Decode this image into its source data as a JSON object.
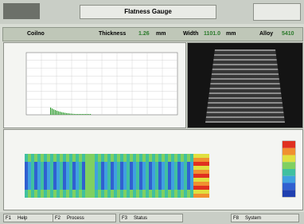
{
  "header": {
    "title": "Flatness Gauge"
  },
  "info": {
    "coil_label": "Coilno",
    "thickness_label": "Thickness",
    "thickness": "1.26",
    "thickness_unit": "mm",
    "width_label": "Width",
    "width": "1101.0",
    "width_unit": "mm",
    "alloy_label": "Alloy",
    "alloy": "5410"
  },
  "footer": {
    "keys": [
      {
        "key": "F1",
        "label": "Help"
      },
      {
        "key": "F2",
        "label": "Process"
      },
      {
        "key": "F3",
        "label": "Status"
      },
      {
        "key": "F8",
        "label": "System"
      }
    ]
  }
}
